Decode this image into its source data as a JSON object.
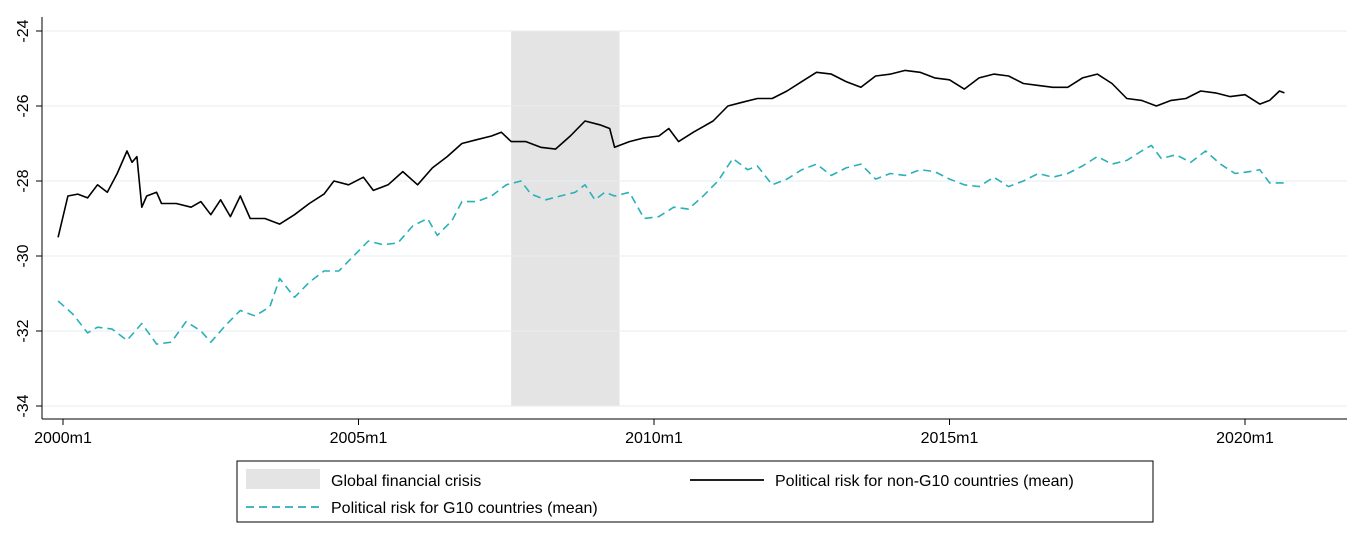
{
  "chart_data": {
    "type": "line",
    "title": "",
    "xlabel": "",
    "ylabel": "",
    "x_unit": "monthly",
    "xlim": [
      "1999m12",
      "2022m4"
    ],
    "ylim": [
      -34,
      -24
    ],
    "y_ticks": [
      -24,
      -26,
      -28,
      -30,
      -32,
      -34
    ],
    "x_ticks": [
      "2000m1",
      "2005m1",
      "2010m1",
      "2015m1",
      "2020m1"
    ],
    "grid": "horizontal",
    "legend_position": "bottom",
    "shaded_regions": [
      {
        "label": "Global financial crisis",
        "start": "2007m8",
        "end": "2009m6",
        "color": "#e4e4e4"
      }
    ],
    "series": [
      {
        "name": "Political risk for non-G10 countries (mean)",
        "color": "#000000",
        "style": "solid",
        "points": [
          [
            "1999m12",
            -29.5
          ],
          [
            "2000m2",
            -28.4
          ],
          [
            "2000m4",
            -28.35
          ],
          [
            "2000m6",
            -28.45
          ],
          [
            "2000m8",
            -28.1
          ],
          [
            "2000m10",
            -28.3
          ],
          [
            "2000m12",
            -27.8
          ],
          [
            "2001m2",
            -27.2
          ],
          [
            "2001m3",
            -27.5
          ],
          [
            "2001m4",
            -27.35
          ],
          [
            "2001m5",
            -28.7
          ],
          [
            "2001m6",
            -28.4
          ],
          [
            "2001m8",
            -28.3
          ],
          [
            "2001m9",
            -28.6
          ],
          [
            "2001m12",
            -28.6
          ],
          [
            "2002m3",
            -28.7
          ],
          [
            "2002m5",
            -28.55
          ],
          [
            "2002m7",
            -28.9
          ],
          [
            "2002m9",
            -28.5
          ],
          [
            "2002m11",
            -28.95
          ],
          [
            "2003m1",
            -28.4
          ],
          [
            "2003m3",
            -29.0
          ],
          [
            "2003m6",
            -29.0
          ],
          [
            "2003m9",
            -29.15
          ],
          [
            "2003m12",
            -28.9
          ],
          [
            "2004m3",
            -28.6
          ],
          [
            "2004m6",
            -28.35
          ],
          [
            "2004m8",
            -28.0
          ],
          [
            "2004m11",
            -28.1
          ],
          [
            "2005m2",
            -27.9
          ],
          [
            "2005m4",
            -28.25
          ],
          [
            "2005m7",
            -28.1
          ],
          [
            "2005m10",
            -27.75
          ],
          [
            "2006m1",
            -28.1
          ],
          [
            "2006m4",
            -27.65
          ],
          [
            "2006m7",
            -27.35
          ],
          [
            "2006m10",
            -27.0
          ],
          [
            "2007m1",
            -26.9
          ],
          [
            "2007m4",
            -26.8
          ],
          [
            "2007m6",
            -26.7
          ],
          [
            "2007m8",
            -26.95
          ],
          [
            "2007m11",
            -26.95
          ],
          [
            "2008m2",
            -27.1
          ],
          [
            "2008m5",
            -27.15
          ],
          [
            "2008m8",
            -26.8
          ],
          [
            "2008m11",
            -26.4
          ],
          [
            "2009m2",
            -26.5
          ],
          [
            "2009m4",
            -26.6
          ],
          [
            "2009m5",
            -27.1
          ],
          [
            "2009m8",
            -26.95
          ],
          [
            "2009m11",
            -26.85
          ],
          [
            "2010m2",
            -26.8
          ],
          [
            "2010m4",
            -26.6
          ],
          [
            "2010m6",
            -26.95
          ],
          [
            "2010m9",
            -26.7
          ],
          [
            "2011m1",
            -26.4
          ],
          [
            "2011m4",
            -26.0
          ],
          [
            "2011m7",
            -25.9
          ],
          [
            "2011m10",
            -25.8
          ],
          [
            "2012m1",
            -25.8
          ],
          [
            "2012m4",
            -25.6
          ],
          [
            "2012m7",
            -25.35
          ],
          [
            "2012m10",
            -25.1
          ],
          [
            "2013m1",
            -25.15
          ],
          [
            "2013m4",
            -25.35
          ],
          [
            "2013m7",
            -25.5
          ],
          [
            "2013m10",
            -25.2
          ],
          [
            "2014m1",
            -25.15
          ],
          [
            "2014m4",
            -25.05
          ],
          [
            "2014m7",
            -25.1
          ],
          [
            "2014m10",
            -25.25
          ],
          [
            "2015m1",
            -25.3
          ],
          [
            "2015m4",
            -25.55
          ],
          [
            "2015m7",
            -25.25
          ],
          [
            "2015m10",
            -25.15
          ],
          [
            "2016m1",
            -25.2
          ],
          [
            "2016m4",
            -25.4
          ],
          [
            "2016m7",
            -25.45
          ],
          [
            "2016m10",
            -25.5
          ],
          [
            "2017m1",
            -25.5
          ],
          [
            "2017m4",
            -25.25
          ],
          [
            "2017m7",
            -25.15
          ],
          [
            "2017m10",
            -25.4
          ],
          [
            "2018m1",
            -25.8
          ],
          [
            "2018m4",
            -25.85
          ],
          [
            "2018m7",
            -26.0
          ],
          [
            "2018m10",
            -25.85
          ],
          [
            "2019m1",
            -25.8
          ],
          [
            "2019m4",
            -25.6
          ],
          [
            "2019m7",
            -25.65
          ],
          [
            "2019m10",
            -25.75
          ],
          [
            "2020m1",
            -25.7
          ],
          [
            "2020m4",
            -25.95
          ],
          [
            "2020m6",
            -25.85
          ],
          [
            "2020m8",
            -25.6
          ],
          [
            "2020m9",
            -25.65
          ]
        ]
      },
      {
        "name": "Political risk for G10 countries (mean)",
        "color": "#2ab0b8",
        "style": "dashed",
        "points": [
          [
            "1999m12",
            -31.2
          ],
          [
            "2000m3",
            -31.55
          ],
          [
            "2000m6",
            -32.05
          ],
          [
            "2000m8",
            -31.9
          ],
          [
            "2000m11",
            -31.95
          ],
          [
            "2001m2",
            -32.25
          ],
          [
            "2001m5",
            -31.8
          ],
          [
            "2001m8",
            -32.35
          ],
          [
            "2001m11",
            -32.3
          ],
          [
            "2002m2",
            -31.75
          ],
          [
            "2002m5",
            -32.0
          ],
          [
            "2002m7",
            -32.3
          ],
          [
            "2002m10",
            -31.85
          ],
          [
            "2003m1",
            -31.45
          ],
          [
            "2003m4",
            -31.6
          ],
          [
            "2003m7",
            -31.35
          ],
          [
            "2003m9",
            -30.6
          ],
          [
            "2003m12",
            -31.1
          ],
          [
            "2004m3",
            -30.7
          ],
          [
            "2004m6",
            -30.4
          ],
          [
            "2004m9",
            -30.4
          ],
          [
            "2004m12",
            -30.0
          ],
          [
            "2005m3",
            -29.6
          ],
          [
            "2005m6",
            -29.7
          ],
          [
            "2005m9",
            -29.65
          ],
          [
            "2005m12",
            -29.2
          ],
          [
            "2006m3",
            -29.0
          ],
          [
            "2006m5",
            -29.45
          ],
          [
            "2006m8",
            -29.05
          ],
          [
            "2006m10",
            -28.55
          ],
          [
            "2007m1",
            -28.55
          ],
          [
            "2007m4",
            -28.4
          ],
          [
            "2007m7",
            -28.1
          ],
          [
            "2007m10",
            -28.0
          ],
          [
            "2007m12",
            -28.35
          ],
          [
            "2008m3",
            -28.5
          ],
          [
            "2008m6",
            -28.4
          ],
          [
            "2008m9",
            -28.3
          ],
          [
            "2008m11",
            -28.1
          ],
          [
            "2009m1",
            -28.5
          ],
          [
            "2009m3",
            -28.3
          ],
          [
            "2009m5",
            -28.4
          ],
          [
            "2009m8",
            -28.3
          ],
          [
            "2009m11",
            -29.0
          ],
          [
            "2010m2",
            -28.95
          ],
          [
            "2010m5",
            -28.7
          ],
          [
            "2010m8",
            -28.75
          ],
          [
            "2010m11",
            -28.4
          ],
          [
            "2011m2",
            -28.0
          ],
          [
            "2011m5",
            -27.4
          ],
          [
            "2011m8",
            -27.7
          ],
          [
            "2011m10",
            -27.6
          ],
          [
            "2012m1",
            -28.1
          ],
          [
            "2012m4",
            -27.95
          ],
          [
            "2012m7",
            -27.7
          ],
          [
            "2012m10",
            -27.55
          ],
          [
            "2013m1",
            -27.85
          ],
          [
            "2013m4",
            -27.65
          ],
          [
            "2013m7",
            -27.55
          ],
          [
            "2013m10",
            -27.95
          ],
          [
            "2014m1",
            -27.8
          ],
          [
            "2014m4",
            -27.85
          ],
          [
            "2014m7",
            -27.7
          ],
          [
            "2014m10",
            -27.75
          ],
          [
            "2015m1",
            -27.95
          ],
          [
            "2015m4",
            -28.1
          ],
          [
            "2015m7",
            -28.15
          ],
          [
            "2015m10",
            -27.9
          ],
          [
            "2016m1",
            -28.15
          ],
          [
            "2016m4",
            -28.0
          ],
          [
            "2016m7",
            -27.8
          ],
          [
            "2016m10",
            -27.9
          ],
          [
            "2017m1",
            -27.8
          ],
          [
            "2017m4",
            -27.6
          ],
          [
            "2017m7",
            -27.35
          ],
          [
            "2017m10",
            -27.55
          ],
          [
            "2018m1",
            -27.45
          ],
          [
            "2018m4",
            -27.2
          ],
          [
            "2018m6",
            -27.05
          ],
          [
            "2018m8",
            -27.4
          ],
          [
            "2018m11",
            -27.3
          ],
          [
            "2019m2",
            -27.5
          ],
          [
            "2019m5",
            -27.2
          ],
          [
            "2019m8",
            -27.55
          ],
          [
            "2019m11",
            -27.8
          ],
          [
            "2020m2",
            -27.75
          ],
          [
            "2020m4",
            -27.7
          ],
          [
            "2020m6",
            -28.05
          ],
          [
            "2020m9",
            -28.05
          ]
        ]
      }
    ]
  }
}
